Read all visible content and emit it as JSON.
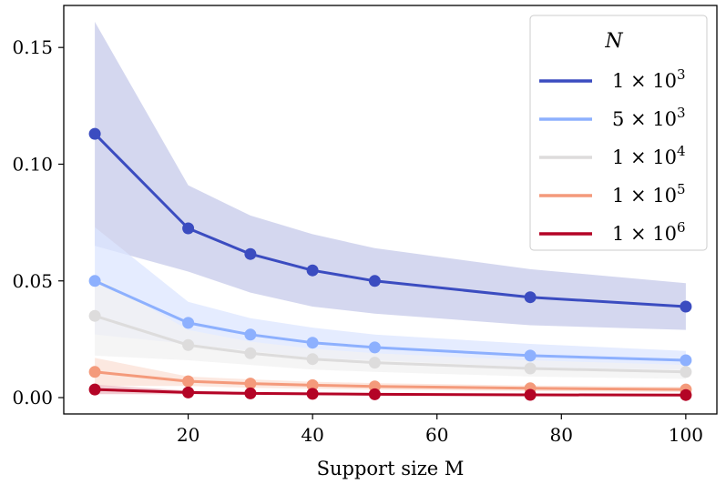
{
  "chart_data": {
    "type": "line",
    "title": "",
    "xlabel": "Support size M",
    "ylabel": "",
    "x": [
      5,
      20,
      30,
      40,
      50,
      75,
      100
    ],
    "xlim": [
      0,
      105
    ],
    "ylim": [
      -0.007,
      0.168
    ],
    "xticks": [
      20,
      40,
      60,
      80,
      100
    ],
    "xtick_labels": [
      "20",
      "40",
      "60",
      "80",
      "100"
    ],
    "yticks": [
      0.0,
      0.05,
      0.1,
      0.15
    ],
    "ytick_labels": [
      "0.00",
      "0.05",
      "0.10",
      "0.15"
    ],
    "grid": false,
    "legend": {
      "title": "N",
      "position": "top-right"
    },
    "series": [
      {
        "name": "1 × 10^3",
        "base": "1 × 10",
        "exp": "3",
        "color": "#3b4cc0",
        "band_color": "#c5c9ea",
        "values": [
          0.113,
          0.0725,
          0.0615,
          0.0545,
          0.05,
          0.043,
          0.039
        ],
        "upper": [
          0.161,
          0.091,
          0.078,
          0.07,
          0.064,
          0.055,
          0.049
        ],
        "lower": [
          0.065,
          0.054,
          0.045,
          0.039,
          0.036,
          0.031,
          0.029
        ]
      },
      {
        "name": "5 × 10^3",
        "base": "5 × 10",
        "exp": "3",
        "color": "#8db0fe",
        "band_color": "#dce6ff",
        "values": [
          0.05,
          0.032,
          0.027,
          0.0235,
          0.0215,
          0.018,
          0.016
        ],
        "upper": [
          0.073,
          0.041,
          0.034,
          0.03,
          0.027,
          0.023,
          0.02
        ],
        "lower": [
          0.027,
          0.023,
          0.02,
          0.017,
          0.016,
          0.013,
          0.012
        ]
      },
      {
        "name": "1 × 10^4",
        "base": "1 × 10",
        "exp": "4",
        "color": "#dddcdc",
        "band_color": "#f1f1f1",
        "values": [
          0.035,
          0.0225,
          0.019,
          0.0165,
          0.015,
          0.0125,
          0.011
        ],
        "upper": [
          0.052,
          0.029,
          0.024,
          0.021,
          0.019,
          0.016,
          0.014
        ],
        "lower": [
          0.018,
          0.016,
          0.014,
          0.012,
          0.011,
          0.009,
          0.008
        ]
      },
      {
        "name": "1 × 10^5",
        "base": "1 × 10",
        "exp": "5",
        "color": "#f49a7b",
        "band_color": "#fbe0d5",
        "values": [
          0.011,
          0.007,
          0.006,
          0.0053,
          0.0048,
          0.004,
          0.0035
        ],
        "upper": [
          0.017,
          0.009,
          0.0078,
          0.0068,
          0.0062,
          0.0052,
          0.0046
        ],
        "lower": [
          0.005,
          0.005,
          0.0042,
          0.0038,
          0.0034,
          0.0028,
          0.0024
        ]
      },
      {
        "name": "1 × 10^6",
        "base": "1 × 10",
        "exp": "6",
        "color": "#b40426",
        "band_color": "#edbcc4",
        "values": [
          0.0035,
          0.0022,
          0.0018,
          0.0016,
          0.0014,
          0.0012,
          0.0011
        ],
        "upper": [
          0.0055,
          0.003,
          0.0024,
          0.0021,
          0.0019,
          0.0016,
          0.0014
        ],
        "lower": [
          0.0015,
          0.0014,
          0.0012,
          0.0011,
          0.0009,
          0.0008,
          0.0008
        ]
      }
    ]
  }
}
